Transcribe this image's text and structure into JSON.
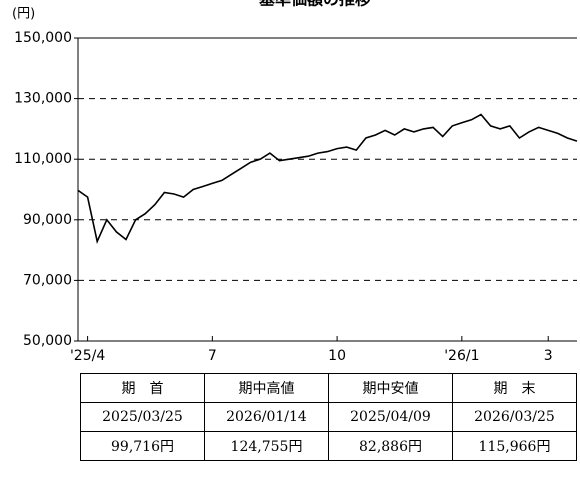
{
  "chart_data": {
    "type": "line",
    "title": "基準価額の推移",
    "y_unit": "(円)",
    "series": [
      {
        "name": "基準価額",
        "color": "#000000",
        "values": [
          99716,
          97500,
          82886,
          90000,
          86000,
          83500,
          90000,
          92000,
          95000,
          99000,
          98500,
          97500,
          100000,
          101000,
          102000,
          103000,
          105000,
          107000,
          109000,
          110000,
          112000,
          109500,
          110000,
          110500,
          111000,
          112000,
          112500,
          113500,
          114000,
          113000,
          117000,
          118000,
          119500,
          118000,
          120000,
          119000,
          120000,
          120500,
          117500,
          121000,
          122000,
          123000,
          124755,
          121000,
          120000,
          121000,
          117000,
          119000,
          120500,
          119500,
          118500,
          117000,
          115966
        ]
      }
    ],
    "xlim": [
      0,
      52
    ],
    "xticks": [
      {
        "value": 1,
        "label": "'25/4"
      },
      {
        "value": 14,
        "label": "7"
      },
      {
        "value": 27,
        "label": "10"
      },
      {
        "value": 40,
        "label": "'26/1"
      },
      {
        "value": 49,
        "label": "3"
      }
    ],
    "ylim": [
      50000,
      150000
    ],
    "yticks": [
      {
        "value": 50000,
        "label": "50,000"
      },
      {
        "value": 70000,
        "label": "70,000"
      },
      {
        "value": 90000,
        "label": "90,000"
      },
      {
        "value": 110000,
        "label": "110,000"
      },
      {
        "value": 130000,
        "label": "130,000"
      },
      {
        "value": 150000,
        "label": "150,000"
      }
    ],
    "grid": true
  },
  "table": {
    "rows": [
      [
        "期　首",
        "期中高値",
        "期中安値",
        "期　末"
      ],
      [
        "2025/03/25",
        "2026/01/14",
        "2025/04/09",
        "2026/03/25"
      ],
      [
        "99,716円",
        "124,755円",
        "82,886円",
        "115,966円"
      ]
    ]
  }
}
